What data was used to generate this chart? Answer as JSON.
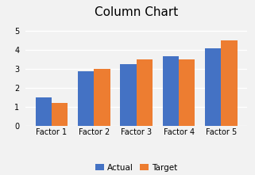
{
  "title": "Column Chart",
  "categories": [
    "Factor 1",
    "Factor 2",
    "Factor 3",
    "Factor 4",
    "Factor 5"
  ],
  "actual": [
    1.5,
    2.85,
    3.25,
    3.65,
    4.05
  ],
  "target": [
    1.2,
    3.0,
    3.5,
    3.5,
    4.5
  ],
  "actual_color": "#4472C4",
  "target_color": "#ED7D31",
  "legend_labels": [
    "Actual",
    "Target"
  ],
  "ylim": [
    0,
    5.5
  ],
  "yticks": [
    0,
    1,
    2,
    3,
    4,
    5
  ],
  "title_fontsize": 11,
  "tick_fontsize": 7,
  "background_color": "#f2f2f2",
  "plot_bg_color": "#f2f2f2",
  "grid_color": "#ffffff",
  "bar_width": 0.38
}
